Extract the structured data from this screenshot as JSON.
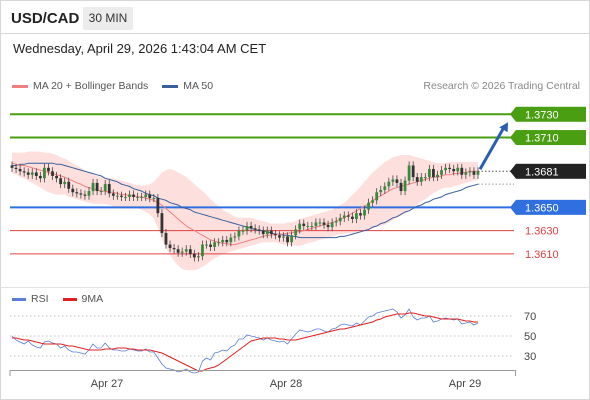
{
  "header": {
    "symbol": "USD/CAD",
    "timeframe": "30 MIN",
    "datetime": "Wednesday, April 29, 2026 1:43:04 AM CET",
    "copyright": "Research © 2026 Trading Central"
  },
  "legend": {
    "ma20_label": "MA 20 + Bollinger Bands",
    "ma20_color": "#f08080",
    "ma50_label": "MA 50",
    "ma50_color": "#3a5f9e"
  },
  "rsi_legend": {
    "rsi_label": "RSI",
    "rsi_color": "#5b7fd6",
    "ma9_label": "9MA",
    "ma9_color": "#e02020"
  },
  "chart_data": [
    {
      "type": "candlestick",
      "title": "",
      "ylim": [
        1.3591,
        1.3744
      ],
      "x_ticks": [
        "Apr 27",
        "Apr 28",
        "Apr 29"
      ],
      "current_price": "1.3681",
      "levels": [
        {
          "value": 1.373,
          "label": "1.3730",
          "kind": "target",
          "color": "#4a9e12"
        },
        {
          "value": 1.371,
          "label": "1.3710",
          "kind": "resistance",
          "color": "#4a9e12"
        },
        {
          "value": 1.365,
          "label": "1.3650",
          "kind": "pivot",
          "color": "#2f6fe0"
        },
        {
          "value": 1.363,
          "label": "1.3630",
          "kind": "support",
          "color": "#e04040"
        },
        {
          "value": 1.361,
          "label": "1.3610",
          "kind": "support",
          "color": "#e04040"
        }
      ],
      "closes": [
        1.3684,
        1.3683,
        1.3681,
        1.368,
        1.3678,
        1.368,
        1.3677,
        1.3675,
        1.3684,
        1.3681,
        1.3677,
        1.3675,
        1.367,
        1.3672,
        1.3666,
        1.3663,
        1.3662,
        1.3661,
        1.366,
        1.3664,
        1.3671,
        1.3664,
        1.3664,
        1.367,
        1.3662,
        1.366,
        1.366,
        1.3659,
        1.3659,
        1.3661,
        1.3659,
        1.3659,
        1.3659,
        1.3661,
        1.3658,
        1.3658,
        1.3645,
        1.3628,
        1.3618,
        1.3615,
        1.3614,
        1.3611,
        1.3612,
        1.3614,
        1.361,
        1.3607,
        1.3608,
        1.3618,
        1.3618,
        1.3616,
        1.362,
        1.362,
        1.3622,
        1.362,
        1.3624,
        1.3625,
        1.363,
        1.363,
        1.3634,
        1.3632,
        1.3631,
        1.363,
        1.3627,
        1.363,
        1.3627,
        1.3626,
        1.3624,
        1.3625,
        1.362,
        1.3626,
        1.3631,
        1.3636,
        1.3634,
        1.3634,
        1.3634,
        1.3637,
        1.3637,
        1.3635,
        1.3633,
        1.3637,
        1.3638,
        1.3641,
        1.3643,
        1.3642,
        1.364,
        1.3645,
        1.3643,
        1.3648,
        1.3654,
        1.3656,
        1.3663,
        1.3665,
        1.3668,
        1.3672,
        1.3674,
        1.3671,
        1.3664,
        1.3673,
        1.3686,
        1.3676,
        1.3672,
        1.3676,
        1.3676,
        1.3683,
        1.3676,
        1.3678,
        1.3682,
        1.3684,
        1.3683,
        1.3681,
        1.3684,
        1.3678,
        1.368,
        1.3681,
        1.3678,
        1.3681
      ],
      "ma20": [
        1.3688,
        1.3687,
        1.3686,
        1.3686,
        1.3685,
        1.3684,
        1.3683,
        1.3682,
        1.3681,
        1.368,
        1.3679,
        1.3678,
        1.3677,
        1.3676,
        1.3674,
        1.3673,
        1.3671,
        1.367,
        1.3668,
        1.3667,
        1.3666,
        1.3665,
        1.3664,
        1.3664,
        1.3663,
        1.3663,
        1.3662,
        1.3661,
        1.3661,
        1.366,
        1.366,
        1.3659,
        1.3659,
        1.3658,
        1.3657,
        1.3656,
        1.3654,
        1.3652,
        1.3649,
        1.3646,
        1.3643,
        1.364,
        1.3637,
        1.3634,
        1.3632,
        1.363,
        1.3628,
        1.3626,
        1.3624,
        1.3622,
        1.3621,
        1.362,
        1.3619,
        1.3619,
        1.3618,
        1.3618,
        1.3619,
        1.362,
        1.3621,
        1.3622,
        1.3623,
        1.3624,
        1.3625,
        1.3626,
        1.3626,
        1.3627,
        1.3627,
        1.3627,
        1.3628,
        1.3628,
        1.3629,
        1.3629,
        1.363,
        1.3631,
        1.3632,
        1.3633,
        1.3634,
        1.3635,
        1.3636,
        1.3637,
        1.3638,
        1.364,
        1.3641,
        1.3643,
        1.3645,
        1.3647,
        1.3649,
        1.3651,
        1.3653,
        1.3656,
        1.3658,
        1.366,
        1.3662,
        1.3664,
        1.3666,
        1.3667,
        1.3668,
        1.3669,
        1.367,
        1.3671,
        1.3672,
        1.3673,
        1.3674,
        1.3675,
        1.3676,
        1.3676,
        1.3677,
        1.3678,
        1.3678,
        1.3679,
        1.3679,
        1.368,
        1.368,
        1.3681,
        1.3681,
        1.3681
      ],
      "bb_upper": [
        1.3697,
        1.3697,
        1.3697,
        1.3697,
        1.3698,
        1.3698,
        1.3698,
        1.3698,
        1.3697,
        1.3697,
        1.3696,
        1.3695,
        1.3693,
        1.3692,
        1.369,
        1.3688,
        1.3686,
        1.3684,
        1.3682,
        1.368,
        1.3678,
        1.3677,
        1.3676,
        1.3675,
        1.3675,
        1.3675,
        1.3674,
        1.3673,
        1.3672,
        1.3671,
        1.367,
        1.3669,
        1.3669,
        1.3669,
        1.367,
        1.3672,
        1.3676,
        1.368,
        1.3682,
        1.3683,
        1.3682,
        1.368,
        1.3678,
        1.3676,
        1.3673,
        1.367,
        1.3667,
        1.3664,
        1.3661,
        1.3657,
        1.3654,
        1.3651,
        1.3648,
        1.3646,
        1.3644,
        1.3642,
        1.3641,
        1.3641,
        1.3641,
        1.3641,
        1.364,
        1.3639,
        1.3638,
        1.3637,
        1.3636,
        1.3636,
        1.3636,
        1.3636,
        1.3637,
        1.3637,
        1.3638,
        1.364,
        1.3641,
        1.3642,
        1.3643,
        1.3644,
        1.3645,
        1.3646,
        1.3647,
        1.3648,
        1.365,
        1.3652,
        1.3654,
        1.3657,
        1.3661,
        1.3664,
        1.3668,
        1.3672,
        1.3676,
        1.368,
        1.3683,
        1.3686,
        1.3689,
        1.3691,
        1.3693,
        1.3694,
        1.3695,
        1.3695,
        1.3695,
        1.3694,
        1.3693,
        1.3692,
        1.3691,
        1.369,
        1.3689,
        1.3688,
        1.3688,
        1.3688,
        1.3689,
        1.3689,
        1.3689,
        1.3689,
        1.3689,
        1.3689,
        1.3689,
        1.3689
      ],
      "bb_lower": [
        1.3679,
        1.3678,
        1.3676,
        1.3675,
        1.3673,
        1.3671,
        1.3669,
        1.3667,
        1.3665,
        1.3663,
        1.3662,
        1.3661,
        1.3661,
        1.3661,
        1.3659,
        1.3658,
        1.3657,
        1.3656,
        1.3655,
        1.3654,
        1.3653,
        1.3653,
        1.3653,
        1.3653,
        1.3652,
        1.3651,
        1.365,
        1.3649,
        1.3649,
        1.3649,
        1.3649,
        1.3649,
        1.3648,
        1.3646,
        1.3644,
        1.364,
        1.3632,
        1.3623,
        1.3615,
        1.3609,
        1.3604,
        1.36,
        1.3597,
        1.3596,
        1.3596,
        1.3596,
        1.3597,
        1.3599,
        1.3601,
        1.3604,
        1.3606,
        1.3608,
        1.361,
        1.3611,
        1.3612,
        1.3613,
        1.3614,
        1.3615,
        1.3616,
        1.3617,
        1.3618,
        1.3619,
        1.362,
        1.362,
        1.362,
        1.362,
        1.3619,
        1.3618,
        1.3618,
        1.3617,
        1.3617,
        1.3617,
        1.3618,
        1.3619,
        1.362,
        1.3621,
        1.3622,
        1.3623,
        1.3624,
        1.3625,
        1.3626,
        1.3627,
        1.3627,
        1.3628,
        1.3628,
        1.3629,
        1.363,
        1.363,
        1.3631,
        1.3632,
        1.3633,
        1.3634,
        1.3635,
        1.3637,
        1.3639,
        1.3641,
        1.3643,
        1.3645,
        1.3647,
        1.365,
        1.3652,
        1.3655,
        1.3657,
        1.366,
        1.3662,
        1.3664,
        1.3666,
        1.3667,
        1.3667,
        1.3668,
        1.3669,
        1.367,
        1.3671,
        1.3672,
        1.3673,
        1.3673
      ],
      "ma50": [
        1.3686,
        1.3686,
        1.3687,
        1.3687,
        1.3688,
        1.3688,
        1.3688,
        1.3688,
        1.3688,
        1.3688,
        1.3688,
        1.3687,
        1.3687,
        1.3686,
        1.3685,
        1.3684,
        1.3683,
        1.3682,
        1.3681,
        1.368,
        1.3679,
        1.3678,
        1.3677,
        1.3675,
        1.3674,
        1.3673,
        1.3672,
        1.367,
        1.3669,
        1.3668,
        1.3666,
        1.3665,
        1.3664,
        1.3662,
        1.3661,
        1.366,
        1.3658,
        1.3657,
        1.3656,
        1.3654,
        1.3653,
        1.3652,
        1.365,
        1.3649,
        1.3648,
        1.3646,
        1.3645,
        1.3644,
        1.3643,
        1.3642,
        1.3641,
        1.364,
        1.3639,
        1.3638,
        1.3637,
        1.3636,
        1.3635,
        1.3634,
        1.3633,
        1.3632,
        1.3631,
        1.363,
        1.363,
        1.3629,
        1.3628,
        1.3627,
        1.3627,
        1.3626,
        1.3626,
        1.3625,
        1.3625,
        1.3624,
        1.3624,
        1.3624,
        1.3624,
        1.3624,
        1.3624,
        1.3624,
        1.3624,
        1.3624,
        1.3624,
        1.3625,
        1.3625,
        1.3626,
        1.3627,
        1.3628,
        1.3629,
        1.363,
        1.3631,
        1.3633,
        1.3634,
        1.3636,
        1.3637,
        1.3639,
        1.3641,
        1.3642,
        1.3644,
        1.3646,
        1.3647,
        1.3649,
        1.3651,
        1.3652,
        1.3654,
        1.3655,
        1.3657,
        1.3658,
        1.3659,
        1.3661,
        1.3662,
        1.3663,
        1.3664,
        1.3665,
        1.3667,
        1.3668,
        1.3669,
        1.367
      ],
      "forecast": {
        "from": 1.3681,
        "to": 1.373
      }
    },
    {
      "type": "line",
      "title": "RSI",
      "ylim": [
        20,
        80
      ],
      "y_ticks": [
        70,
        50,
        30
      ],
      "series": [
        {
          "name": "RSI",
          "values": [
            50,
            46,
            44,
            42,
            45,
            41,
            39,
            38,
            44,
            45,
            43,
            42,
            38,
            40,
            36,
            34,
            34,
            33,
            32,
            36,
            42,
            38,
            38,
            43,
            38,
            36,
            36,
            35,
            35,
            37,
            36,
            35,
            35,
            37,
            34,
            34,
            28,
            22,
            18,
            17,
            16,
            14,
            15,
            17,
            14,
            13,
            14,
            25,
            28,
            26,
            33,
            34,
            36,
            35,
            39,
            41,
            47,
            47,
            51,
            50,
            49,
            48,
            46,
            48,
            46,
            45,
            44,
            45,
            42,
            47,
            52,
            56,
            55,
            54,
            55,
            57,
            57,
            55,
            54,
            57,
            58,
            61,
            62,
            61,
            60,
            63,
            61,
            65,
            69,
            70,
            73,
            74,
            75,
            76,
            77,
            74,
            68,
            71,
            77,
            69,
            66,
            68,
            68,
            70,
            64,
            65,
            67,
            68,
            67,
            66,
            67,
            62,
            63,
            64,
            61,
            63
          ]
        },
        {
          "name": "9MA",
          "values": [
            48,
            48,
            47,
            46,
            46,
            45,
            44,
            43,
            42,
            42,
            42,
            42,
            42,
            41,
            40,
            40,
            39,
            38,
            37,
            36,
            36,
            36,
            36,
            37,
            37,
            37,
            38,
            38,
            38,
            37,
            37,
            36,
            36,
            36,
            36,
            35,
            34,
            33,
            31,
            29,
            27,
            25,
            23,
            21,
            19,
            17,
            15,
            15,
            17,
            18,
            19,
            21,
            24,
            27,
            30,
            33,
            36,
            39,
            42,
            45,
            46,
            47,
            48,
            48,
            48,
            48,
            47,
            47,
            46,
            46,
            46,
            47,
            48,
            49,
            50,
            51,
            52,
            53,
            54,
            55,
            56,
            57,
            57,
            58,
            59,
            60,
            61,
            62,
            63,
            64,
            66,
            67,
            69,
            70,
            71,
            72,
            72,
            72,
            73,
            73,
            72,
            71,
            70,
            70,
            69,
            68,
            67,
            67,
            67,
            67,
            67,
            66,
            65,
            65,
            64,
            64
          ]
        }
      ]
    }
  ]
}
